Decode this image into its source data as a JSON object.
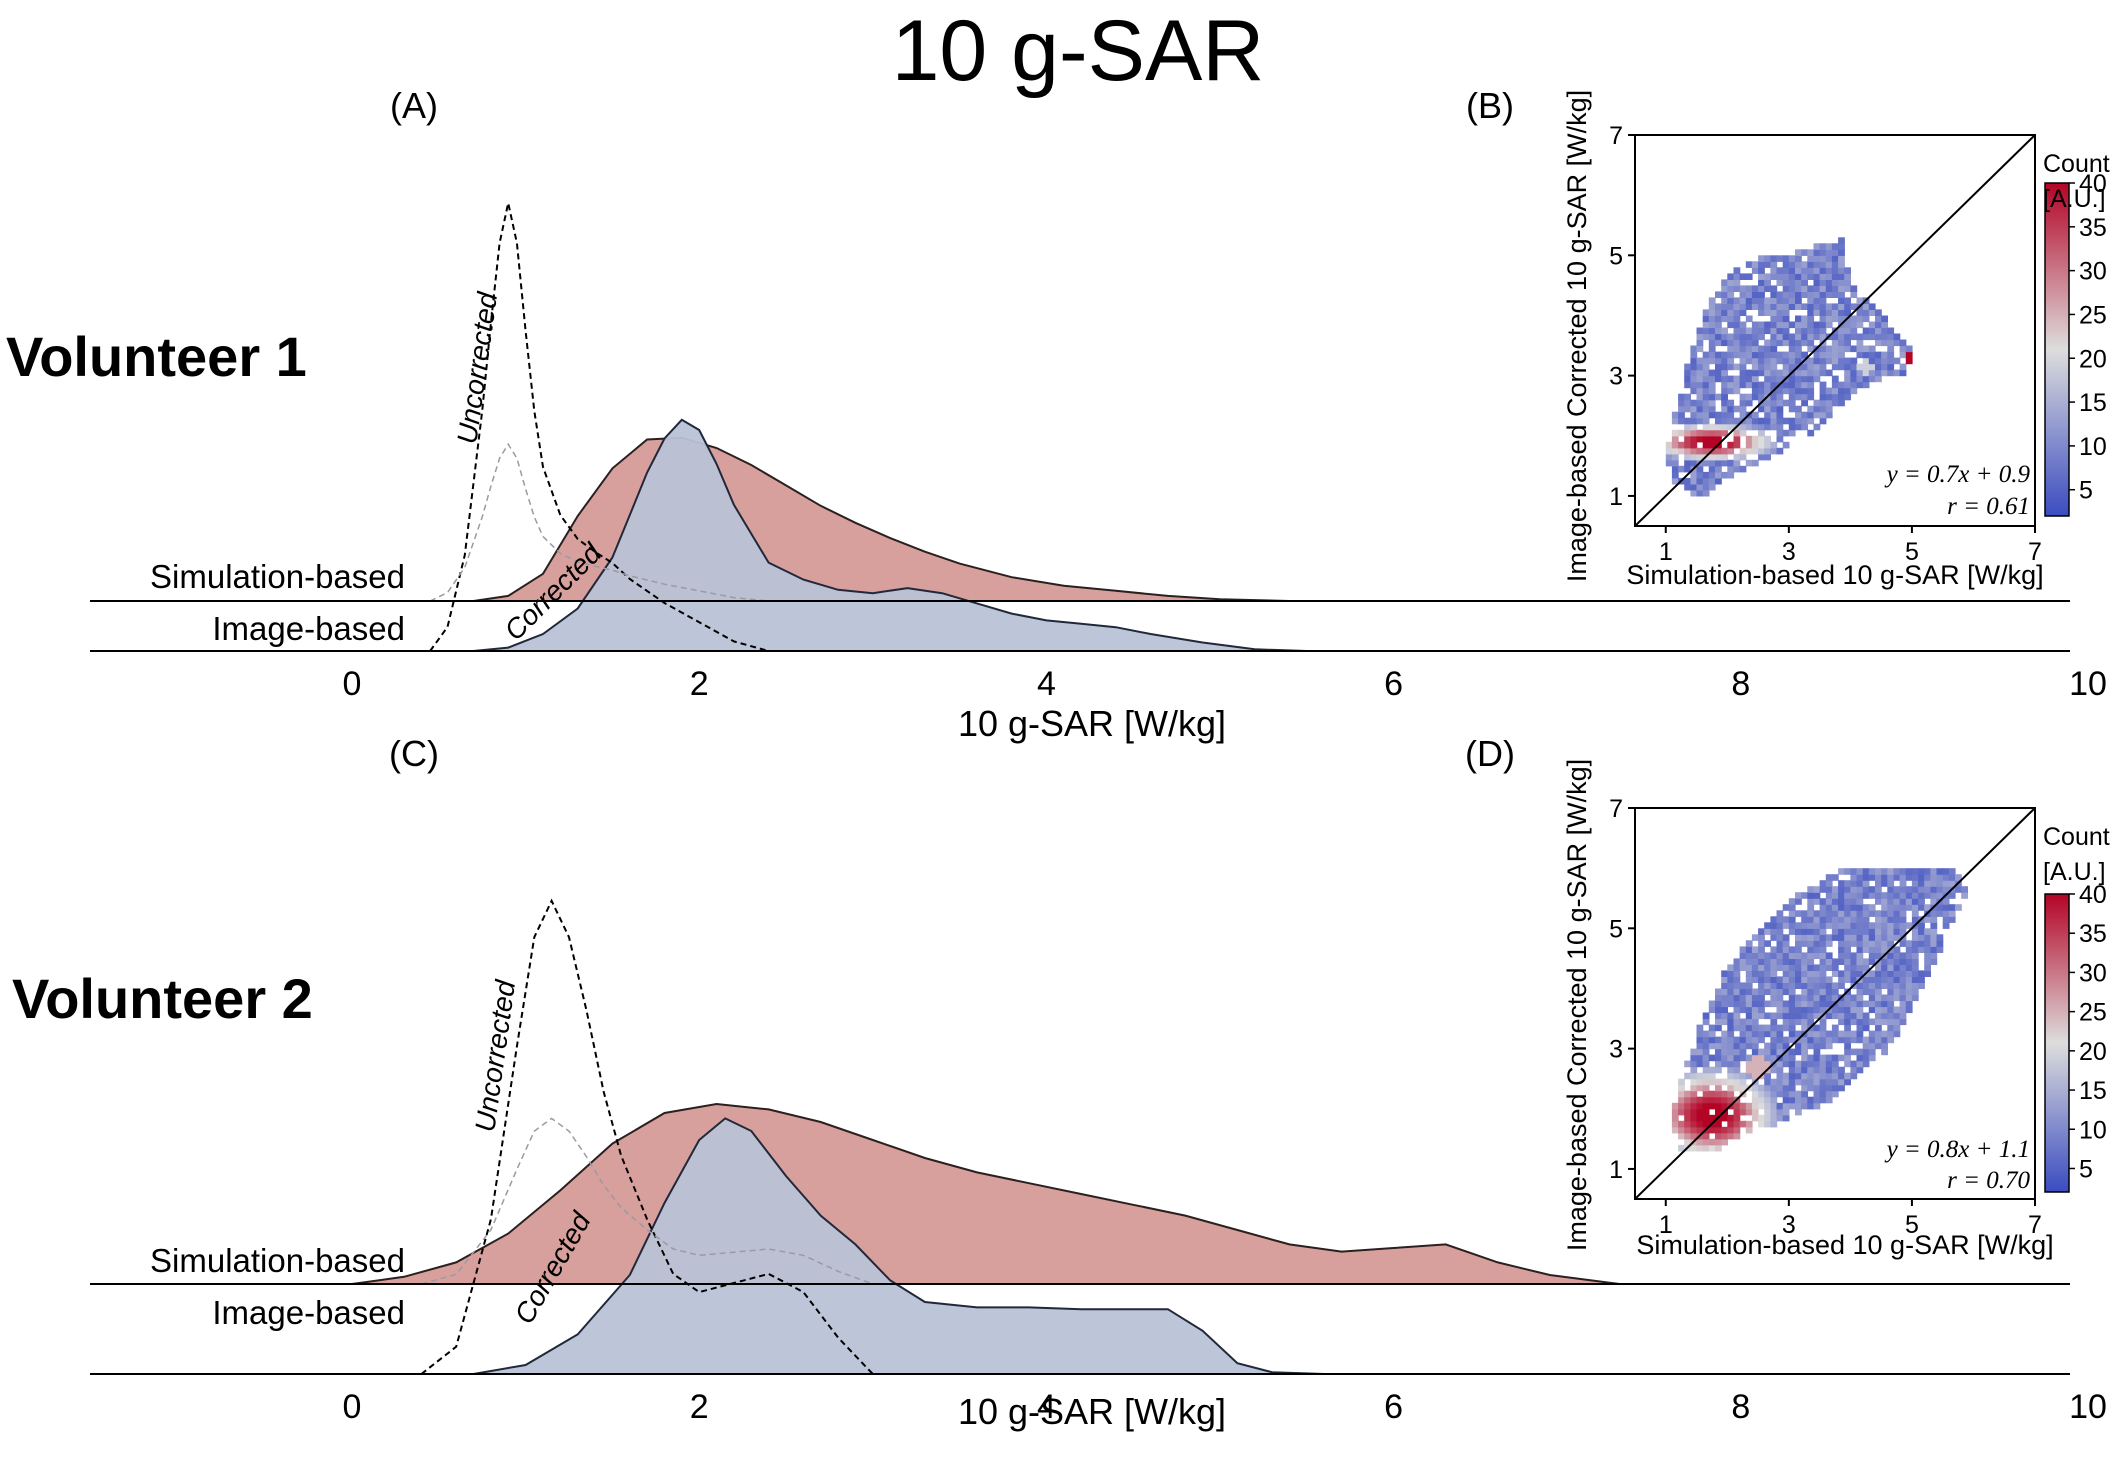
{
  "figure": {
    "title": "10 g-SAR"
  },
  "colors": {
    "simulation_fill": "#d7a09c",
    "image_fill": "#b9c3d6",
    "image_stroke": "#20283a",
    "heat_low": "#3b4cc0",
    "heat_mid": "#dddddd",
    "heat_high": "#b40426"
  },
  "chart_data": [
    {
      "panel": "(A)",
      "type": "area",
      "row_title": "Volunteer 1",
      "xlabel": "10 g-SAR [W/kg]",
      "xlim": [
        -1.5,
        10
      ],
      "xticks": [
        "0",
        "2",
        "4",
        "6",
        "8",
        "10"
      ],
      "rows": [
        "Simulation-based",
        "Image-based"
      ],
      "curve_labels": {
        "uncorrected": "Uncorrected",
        "corrected": "Corrected"
      },
      "series": [
        {
          "name": "Simulation-based",
          "x": [
            0.7,
            0.9,
            1.1,
            1.3,
            1.5,
            1.7,
            1.9,
            2.1,
            2.3,
            2.5,
            2.7,
            2.9,
            3.1,
            3.3,
            3.5,
            3.8,
            4.1,
            4.4,
            4.7,
            5.0,
            5.4
          ],
          "y": [
            0.0,
            0.03,
            0.16,
            0.5,
            0.78,
            0.95,
            0.96,
            0.9,
            0.8,
            0.68,
            0.56,
            0.46,
            0.37,
            0.29,
            0.22,
            0.14,
            0.09,
            0.06,
            0.03,
            0.01,
            0.0
          ]
        },
        {
          "name": "Image-based",
          "x": [
            0.7,
            0.9,
            1.1,
            1.3,
            1.5,
            1.6,
            1.7,
            1.8,
            1.9,
            2.0,
            2.1,
            2.2,
            2.4,
            2.6,
            2.8,
            3.0,
            3.2,
            3.4,
            3.6,
            3.8,
            4.0,
            4.2,
            4.4,
            4.6,
            4.9,
            5.2,
            5.5
          ],
          "y": [
            0.0,
            0.02,
            0.1,
            0.25,
            0.55,
            0.8,
            1.05,
            1.25,
            1.36,
            1.3,
            1.1,
            0.86,
            0.52,
            0.42,
            0.36,
            0.34,
            0.37,
            0.34,
            0.28,
            0.22,
            0.18,
            0.16,
            0.14,
            0.1,
            0.05,
            0.01,
            0.0
          ]
        },
        {
          "name": "Uncorrected",
          "x": [
            0.45,
            0.55,
            0.65,
            0.75,
            0.8,
            0.85,
            0.9,
            0.95,
            1.0,
            1.05,
            1.1,
            1.2,
            1.3,
            1.4,
            1.5,
            1.6,
            1.8,
            2.0,
            2.2,
            2.4
          ],
          "y": [
            0.0,
            0.15,
            0.6,
            1.5,
            2.05,
            2.55,
            2.8,
            2.55,
            2.0,
            1.5,
            1.15,
            0.85,
            0.7,
            0.62,
            0.55,
            0.45,
            0.3,
            0.18,
            0.06,
            0.0
          ]
        }
      ]
    },
    {
      "panel": "(B)",
      "type": "heatmap",
      "xlabel": "Simulation-based 10 g-SAR [W/kg]",
      "ylabel": "Image-based Corrected 10 g-SAR [W/kg]",
      "xlim": [
        0.5,
        7
      ],
      "ylim": [
        0.5,
        7
      ],
      "xticks": [
        "1",
        "3",
        "5",
        "7"
      ],
      "yticks": [
        "1",
        "3",
        "5",
        "7"
      ],
      "colorbar": {
        "label_line1": "Count",
        "label_line2": "[A.U.]",
        "ticks": [
          "5",
          "10",
          "15",
          "20",
          "25",
          "30",
          "35",
          "40"
        ],
        "range": [
          2,
          40
        ]
      },
      "fit": {
        "equation": "y = 0.7x + 0.9",
        "r": "r = 0.61"
      }
    },
    {
      "panel": "(C)",
      "type": "area",
      "row_title": "Volunteer 2",
      "xlabel": "10 g-SAR [W/kg]",
      "xlim": [
        -1.5,
        10
      ],
      "xticks": [
        "0",
        "2",
        "4",
        "6",
        "8",
        "10"
      ],
      "rows": [
        "Simulation-based",
        "Image-based"
      ],
      "curve_labels": {
        "uncorrected": "Uncorrected",
        "corrected": "Corrected"
      },
      "series": [
        {
          "name": "Simulation-based",
          "x": [
            0.0,
            0.3,
            0.6,
            0.9,
            1.2,
            1.5,
            1.8,
            2.1,
            2.4,
            2.7,
            3.0,
            3.3,
            3.6,
            3.9,
            4.2,
            4.5,
            4.8,
            5.1,
            5.4,
            5.7,
            6.0,
            6.3,
            6.6,
            6.9,
            7.3
          ],
          "y": [
            0.0,
            0.04,
            0.12,
            0.28,
            0.52,
            0.78,
            0.95,
            1.0,
            0.97,
            0.9,
            0.8,
            0.7,
            0.62,
            0.56,
            0.5,
            0.44,
            0.38,
            0.3,
            0.22,
            0.18,
            0.2,
            0.22,
            0.12,
            0.05,
            0.0
          ]
        },
        {
          "name": "Image-based",
          "x": [
            0.7,
            1.0,
            1.3,
            1.6,
            1.8,
            2.0,
            2.15,
            2.3,
            2.5,
            2.7,
            2.9,
            3.1,
            3.3,
            3.6,
            3.9,
            4.2,
            4.5,
            4.7,
            4.9,
            5.1,
            5.3,
            5.6
          ],
          "y": [
            0.0,
            0.05,
            0.22,
            0.55,
            0.95,
            1.3,
            1.42,
            1.35,
            1.1,
            0.88,
            0.72,
            0.52,
            0.4,
            0.37,
            0.37,
            0.36,
            0.36,
            0.36,
            0.24,
            0.06,
            0.01,
            0.0
          ]
        },
        {
          "name": "Uncorrected",
          "x": [
            0.4,
            0.6,
            0.8,
            0.95,
            1.05,
            1.15,
            1.25,
            1.35,
            1.45,
            1.55,
            1.7,
            1.85,
            2.0,
            2.2,
            2.4,
            2.6,
            2.8,
            3.0
          ],
          "y": [
            0.0,
            0.15,
            0.85,
            1.8,
            2.4,
            2.6,
            2.4,
            2.0,
            1.55,
            1.2,
            0.85,
            0.55,
            0.45,
            0.5,
            0.55,
            0.45,
            0.2,
            0.0
          ]
        }
      ]
    },
    {
      "panel": "(D)",
      "type": "heatmap",
      "xlabel": "Simulation-based 10 g-SAR [W/kg]",
      "ylabel": "Image-based Corrected 10 g-SAR [W/kg]",
      "xlim": [
        0.5,
        7
      ],
      "ylim": [
        0.5,
        7
      ],
      "xticks": [
        "1",
        "3",
        "5",
        "7"
      ],
      "yticks": [
        "1",
        "3",
        "5",
        "7"
      ],
      "colorbar": {
        "label_line1": "Count",
        "label_line2": "[A.U.]",
        "ticks": [
          "5",
          "10",
          "15",
          "20",
          "25",
          "30",
          "35",
          "40"
        ],
        "range": [
          2,
          40
        ]
      },
      "fit": {
        "equation": "y = 0.8x + 1.1",
        "r": "r = 0.70"
      }
    }
  ]
}
